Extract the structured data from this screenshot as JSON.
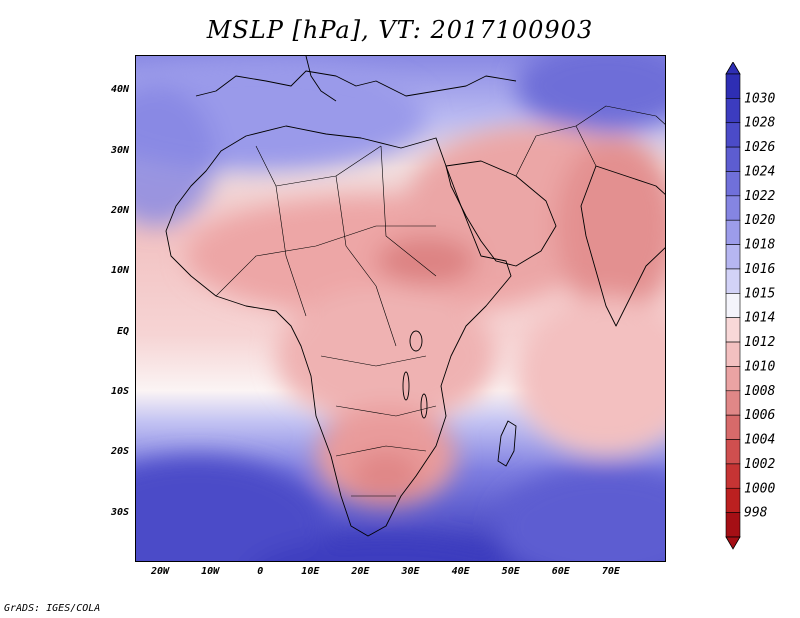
{
  "title": "MSLP [hPa], VT: 2017100903",
  "footer": "GrADS: IGES/COLA",
  "map": {
    "lon_range": [
      -25,
      81
    ],
    "lat_range": [
      -38,
      46
    ],
    "lat_ticks": [
      {
        "value": 40,
        "label": "40N"
      },
      {
        "value": 30,
        "label": "30N"
      },
      {
        "value": 20,
        "label": "20N"
      },
      {
        "value": 10,
        "label": "10N"
      },
      {
        "value": 0,
        "label": "EQ"
      },
      {
        "value": -10,
        "label": "10S"
      },
      {
        "value": -20,
        "label": "20S"
      },
      {
        "value": -30,
        "label": "30S"
      }
    ],
    "lon_ticks": [
      {
        "value": -20,
        "label": "20W"
      },
      {
        "value": -10,
        "label": "10W"
      },
      {
        "value": 0,
        "label": "0"
      },
      {
        "value": 10,
        "label": "10E"
      },
      {
        "value": 20,
        "label": "20E"
      },
      {
        "value": 30,
        "label": "30E"
      },
      {
        "value": 40,
        "label": "40E"
      },
      {
        "value": 50,
        "label": "50E"
      },
      {
        "value": 60,
        "label": "60E"
      },
      {
        "value": 70,
        "label": "70E"
      }
    ]
  },
  "colorbar": {
    "levels": [
      "1030",
      "1028",
      "1026",
      "1024",
      "1022",
      "1020",
      "1018",
      "1016",
      "1015",
      "1014",
      "1012",
      "1010",
      "1008",
      "1006",
      "1004",
      "1002",
      "1000",
      "998"
    ],
    "colors": [
      "#2e2eb4",
      "#3c3cbf",
      "#4b4bc8",
      "#5d5dd1",
      "#7070da",
      "#8585e2",
      "#9c9cea",
      "#b6b6f1",
      "#d2d2f7",
      "#f4f4fb",
      "#f8d8d8",
      "#f3c0c0",
      "#eaa3a3",
      "#e08787",
      "#d76a6a",
      "#cf4f4f",
      "#c63434",
      "#bb2020",
      "#a50f15"
    ]
  }
}
